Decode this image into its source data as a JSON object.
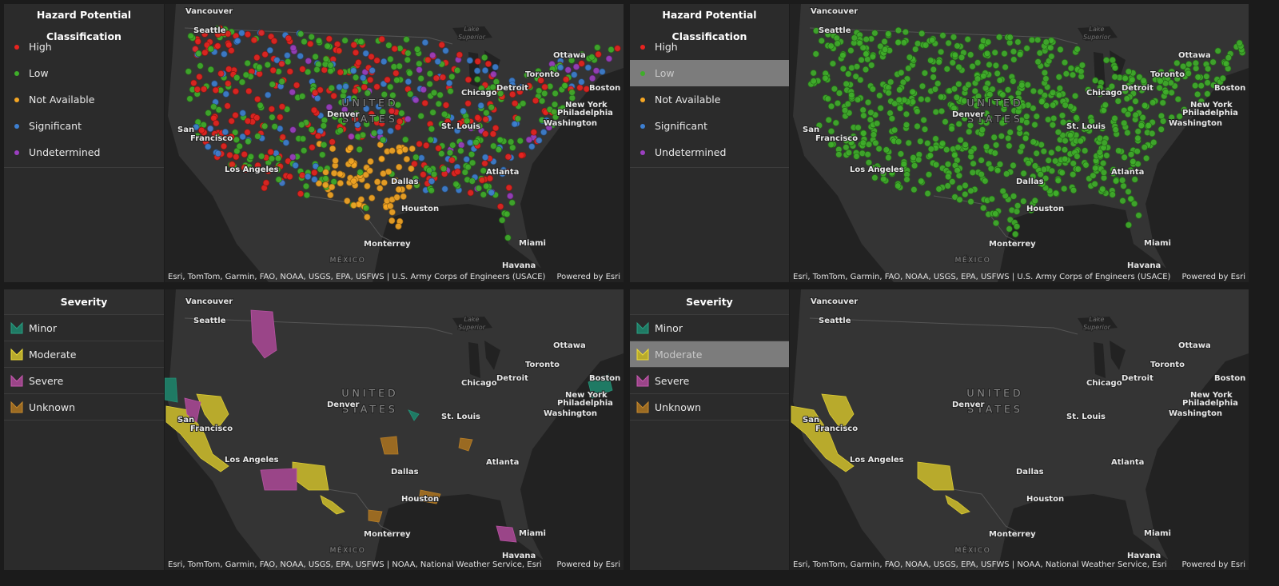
{
  "panels": [
    {
      "legend": {
        "title": "Hazard Potential Classification",
        "items": [
          {
            "label": "High",
            "color": "#e8231f"
          },
          {
            "label": "Low",
            "color": "#3fae2a"
          },
          {
            "label": "Not Available",
            "color": "#f5a623"
          },
          {
            "label": "Significant",
            "color": "#3d7fd1"
          },
          {
            "label": "Undetermined",
            "color": "#9b3fc0"
          }
        ]
      },
      "map": {
        "labels": [
          "Vancouver",
          "Seattle",
          "Lake",
          "Superior",
          "Ottawa",
          "Toronto",
          "Detroit",
          "Boston",
          "Chicago",
          "UNITED",
          "STATES",
          "Denver",
          "New York",
          "Philadelphia",
          "Washington",
          "San",
          "Francisco",
          "St. Louis",
          "Los Angeles",
          "Atlanta",
          "Dallas",
          "Houston",
          "Monterrey",
          "MÉXICO",
          "Miami",
          "Havana"
        ],
        "attribution": "Esri, TomTom, Garmin, FAO, NOAA, USGS, EPA, USFWS | U.S. Army Corps of Engineers (USACE)",
        "credit": "Powered by Esri"
      }
    },
    {
      "legend": {
        "title": "Hazard Potential Classification",
        "items": [
          {
            "label": "High",
            "color": "#e8231f"
          },
          {
            "label": "Low",
            "color": "#3fae2a",
            "selected": true
          },
          {
            "label": "Not Available",
            "color": "#f5a623"
          },
          {
            "label": "Significant",
            "color": "#3d7fd1"
          },
          {
            "label": "Undetermined",
            "color": "#9b3fc0"
          }
        ]
      },
      "map": {
        "labels": [
          "Vancouver",
          "Seattle",
          "Lake",
          "Superior",
          "Ottawa",
          "Toronto",
          "Detroit",
          "Boston",
          "Chicago",
          "UNITED",
          "STATES",
          "Denver",
          "New York",
          "Philadelphia",
          "Washington",
          "San",
          "Francisco",
          "St. Louis",
          "Los Angeles",
          "Atlanta",
          "Dallas",
          "Houston",
          "Monterrey",
          "MÉXICO",
          "Miami",
          "Havana"
        ],
        "attribution": "Esri, TomTom, Garmin, FAO, NOAA, USGS, EPA, USFWS | U.S. Army Corps of Engineers (USACE)",
        "credit": "Powered by Esri"
      }
    },
    {
      "legend": {
        "title": "Severity",
        "items": [
          {
            "label": "Minor",
            "color": "#1f7a64"
          },
          {
            "label": "Moderate",
            "color": "#b8aa2c"
          },
          {
            "label": "Severe",
            "color": "#9a4588"
          },
          {
            "label": "Unknown",
            "color": "#9a6a22"
          }
        ]
      },
      "map": {
        "labels": [
          "Vancouver",
          "Seattle",
          "Lake",
          "Superior",
          "Ottawa",
          "Toronto",
          "Detroit",
          "Boston",
          "Chicago",
          "UNITED",
          "STATES",
          "Denver",
          "New York",
          "Philadelphia",
          "Washington",
          "San",
          "Francisco",
          "St. Louis",
          "Los Angeles",
          "Atlanta",
          "Dallas",
          "Houston",
          "Monterrey",
          "MÉXICO",
          "Miami",
          "Havana"
        ],
        "attribution": "Esri, TomTom, Garmin, FAO, NOAA, USGS, EPA, USFWS | NOAA, National Weather Service, Esri",
        "credit": "Powered by Esri"
      }
    },
    {
      "legend": {
        "title": "Severity",
        "items": [
          {
            "label": "Minor",
            "color": "#1f7a64"
          },
          {
            "label": "Moderate",
            "color": "#b8aa2c",
            "selected": true
          },
          {
            "label": "Severe",
            "color": "#9a4588"
          },
          {
            "label": "Unknown",
            "color": "#9a6a22"
          }
        ]
      },
      "map": {
        "labels": [
          "Vancouver",
          "Seattle",
          "Lake",
          "Superior",
          "Ottawa",
          "Toronto",
          "Detroit",
          "Boston",
          "Chicago",
          "UNITED",
          "STATES",
          "Denver",
          "New York",
          "Philadelphia",
          "Washington",
          "San",
          "Francisco",
          "St. Louis",
          "Los Angeles",
          "Atlanta",
          "Dallas",
          "Houston",
          "Monterrey",
          "MÉXICO",
          "Miami",
          "Havana"
        ],
        "attribution": "Esri, TomTom, Garmin, FAO, NOAA, USGS, EPA, USFWS | NOAA, National Weather Service, Esri",
        "credit": "Powered by Esri"
      }
    }
  ]
}
